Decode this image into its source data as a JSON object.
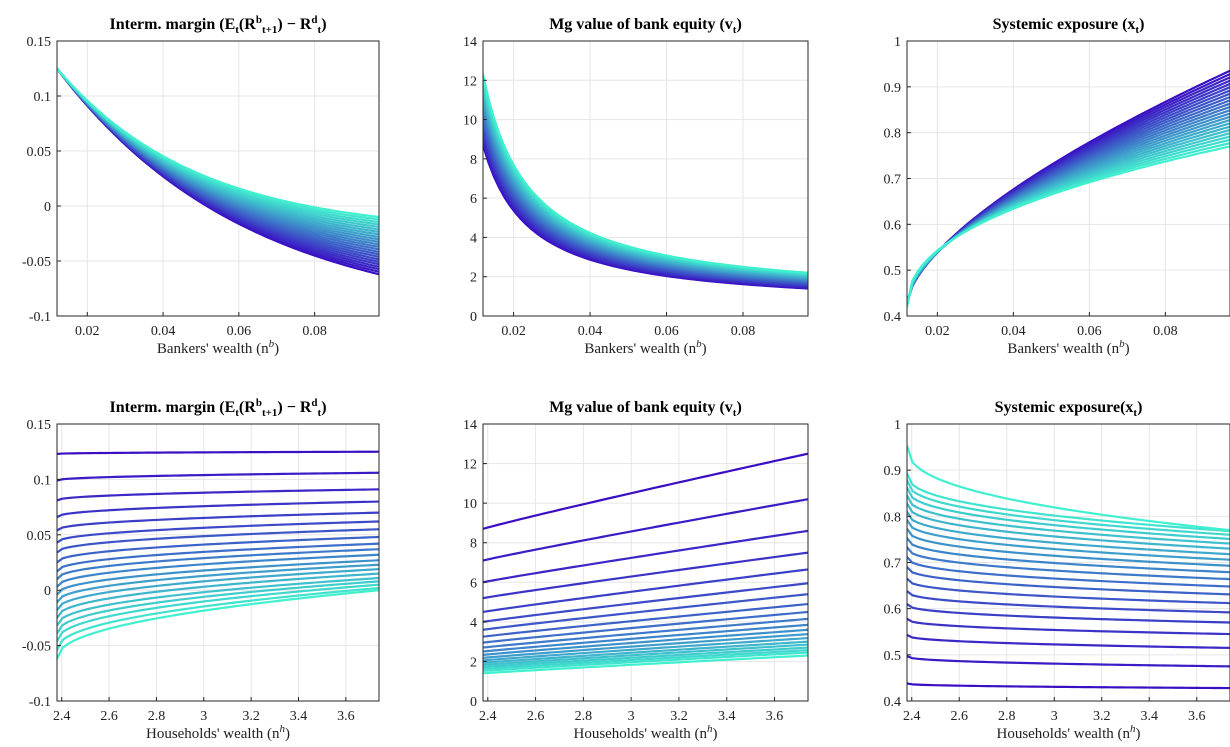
{
  "chart_data": [
    {
      "id": "p1",
      "type": "line",
      "title": "Interm. margin (E",
      "title_parts": [
        "Interm. margin (",
        "E",
        "t",
        "(R",
        "b",
        "t+1",
        ") − ",
        "R",
        "d",
        "t",
        ")"
      ],
      "xlabel": "Bankers' wealth (n",
      "xlabel_sup": "b",
      "xlabel_close": ")",
      "xlim": [
        0.012,
        0.097
      ],
      "ylim": [
        -0.1,
        0.15
      ],
      "xticks": [
        0.02,
        0.04,
        0.06,
        0.08
      ],
      "xtick_labels": [
        "0.02",
        "0.04",
        "0.06",
        "0.08"
      ],
      "yticks": [
        -0.1,
        -0.05,
        0,
        0.05,
        0.1,
        0.15
      ],
      "ytick_labels": [
        "-0.1",
        "-0.05",
        "0",
        "0.05",
        "0.1",
        "0.15"
      ],
      "n_series": 24,
      "family": "fan",
      "x_range": [
        0.012,
        0.097
      ],
      "start_value": 0.125,
      "end_values": [
        -0.062,
        -0.01
      ],
      "curvature": [
        1.7,
        2.3
      ]
    },
    {
      "id": "p2",
      "type": "line",
      "title": "Mg value of bank equity (",
      "title_parts": [
        "Mg value of bank equity (",
        "v",
        "t",
        ")"
      ],
      "xlabel": "Bankers' wealth (n",
      "xlabel_sup": "b",
      "xlabel_close": ")",
      "xlim": [
        0.012,
        0.097
      ],
      "ylim": [
        0,
        14
      ],
      "xticks": [
        0.02,
        0.04,
        0.06,
        0.08
      ],
      "xtick_labels": [
        "0.02",
        "0.04",
        "0.06",
        "0.08"
      ],
      "yticks": [
        0,
        2,
        4,
        6,
        8,
        10,
        12,
        14
      ],
      "ytick_labels": [
        "0",
        "2",
        "4",
        "6",
        "8",
        "10",
        "12",
        "14"
      ],
      "n_series": 24,
      "family": "decay",
      "x_range": [
        0.012,
        0.097
      ],
      "start_values": [
        8.7,
        12.3
      ],
      "end_values": [
        1.4,
        2.2
      ],
      "exponent": 1.0
    },
    {
      "id": "p3",
      "type": "line",
      "title": "Systemic exposure (",
      "title_parts": [
        "Systemic exposure (",
        "x",
        "t",
        ")"
      ],
      "xlabel": "Bankers' wealth (n",
      "xlabel_sup": "b",
      "xlabel_close": ")",
      "xlim": [
        0.012,
        0.097
      ],
      "ylim": [
        0.4,
        1.0
      ],
      "xticks": [
        0.02,
        0.04,
        0.06,
        0.08
      ],
      "xtick_labels": [
        "0.02",
        "0.04",
        "0.06",
        "0.08"
      ],
      "yticks": [
        0.4,
        0.5,
        0.6,
        0.7,
        0.8,
        0.9,
        1.0
      ],
      "ytick_labels": [
        "0.4",
        "0.5",
        "0.6",
        "0.7",
        "0.8",
        "0.9",
        "1"
      ],
      "n_series": 24,
      "family": "rise",
      "x_range": [
        0.012,
        0.097
      ],
      "start_values": [
        0.43,
        0.42
      ],
      "mid_values": [
        0.73,
        0.665
      ],
      "mid_x": 0.05,
      "end_values": [
        0.935,
        0.77
      ]
    },
    {
      "id": "p4",
      "type": "line",
      "title": "Interm. margin (E",
      "title_parts": [
        "Interm. margin (",
        "E",
        "t",
        "(R",
        "b",
        "t+1",
        ") − ",
        "R",
        "d",
        "t",
        ")"
      ],
      "xlabel": "Households' wealth (n",
      "xlabel_sup": "h",
      "xlabel_close": ")",
      "xlim": [
        2.38,
        3.74
      ],
      "ylim": [
        -0.1,
        0.15
      ],
      "xticks": [
        2.4,
        2.6,
        2.8,
        3.0,
        3.2,
        3.4,
        3.6
      ],
      "xtick_labels": [
        "2.4",
        "2.6",
        "2.8",
        "3",
        "3.2",
        "3.4",
        "3.6"
      ],
      "yticks": [
        -0.1,
        -0.05,
        0,
        0.05,
        0.1,
        0.15
      ],
      "ytick_labels": [
        "-0.1",
        "-0.05",
        "0",
        "0.05",
        "0.1",
        "0.15"
      ],
      "n_series": 20,
      "family": "levels",
      "x_range": [
        2.38,
        3.74
      ],
      "start_values": [
        0.123,
        0.099,
        0.081,
        0.066,
        0.054,
        0.043,
        0.034,
        0.025,
        0.017,
        0.01,
        0.003,
        -0.004,
        -0.011,
        -0.018,
        -0.025,
        -0.032,
        -0.039,
        -0.046,
        -0.054,
        -0.062
      ],
      "end_values": [
        0.125,
        0.106,
        0.091,
        0.08,
        0.07,
        0.062,
        0.055,
        0.048,
        0.042,
        0.037,
        0.032,
        0.027,
        0.023,
        0.019,
        0.015,
        0.011,
        0.008,
        0.005,
        0.002,
        0.0
      ],
      "exponent": 0.45
    },
    {
      "id": "p5",
      "type": "line",
      "title": "Mg value of bank equity (",
      "title_parts": [
        "Mg value of bank equity (",
        "v",
        "t",
        ")"
      ],
      "xlabel": "Households' wealth (n",
      "xlabel_sup": "h",
      "xlabel_close": ")",
      "xlim": [
        2.38,
        3.74
      ],
      "ylim": [
        0,
        14
      ],
      "xticks": [
        2.4,
        2.6,
        2.8,
        3.0,
        3.2,
        3.4,
        3.6
      ],
      "xtick_labels": [
        "2.4",
        "2.6",
        "2.8",
        "3",
        "3.2",
        "3.4",
        "3.6"
      ],
      "yticks": [
        0,
        2,
        4,
        6,
        8,
        10,
        12,
        14
      ],
      "ytick_labels": [
        "0",
        "2",
        "4",
        "6",
        "8",
        "10",
        "12",
        "14"
      ],
      "n_series": 20,
      "family": "levels",
      "x_range": [
        2.38,
        3.74
      ],
      "start_values": [
        8.7,
        7.1,
        6.0,
        5.2,
        4.5,
        4.0,
        3.6,
        3.25,
        2.95,
        2.7,
        2.5,
        2.33,
        2.18,
        2.05,
        1.93,
        1.82,
        1.72,
        1.62,
        1.52,
        1.4
      ],
      "end_values": [
        12.5,
        10.2,
        8.6,
        7.5,
        6.65,
        5.95,
        5.4,
        4.9,
        4.5,
        4.15,
        3.85,
        3.6,
        3.38,
        3.18,
        3.0,
        2.85,
        2.7,
        2.57,
        2.45,
        2.3
      ],
      "exponent": 0.95
    },
    {
      "id": "p6",
      "type": "line",
      "title": "Systemic exposure(",
      "title_parts": [
        "Systemic exposure(",
        "x",
        "t",
        ")"
      ],
      "xlabel": "Households' wealth (n",
      "xlabel_sup": "h",
      "xlabel_close": ")",
      "xlim": [
        2.38,
        3.74
      ],
      "ylim": [
        0.4,
        1.0
      ],
      "xticks": [
        2.4,
        2.6,
        2.8,
        3.0,
        3.2,
        3.4,
        3.6
      ],
      "xtick_labels": [
        "2.4",
        "2.6",
        "2.8",
        "3",
        "3.2",
        "3.4",
        "3.6"
      ],
      "yticks": [
        0.4,
        0.5,
        0.6,
        0.7,
        0.8,
        0.9,
        1.0
      ],
      "ytick_labels": [
        "0.4",
        "0.5",
        "0.6",
        "0.7",
        "0.8",
        "0.9",
        "1"
      ],
      "n_series": 20,
      "family": "levels",
      "x_range": [
        2.38,
        3.74
      ],
      "start_values": [
        0.438,
        0.497,
        0.543,
        0.578,
        0.61,
        0.638,
        0.665,
        0.69,
        0.712,
        0.733,
        0.753,
        0.773,
        0.792,
        0.81,
        0.828,
        0.845,
        0.862,
        0.878,
        0.893,
        0.953
      ],
      "end_values": [
        0.428,
        0.475,
        0.515,
        0.545,
        0.57,
        0.592,
        0.612,
        0.631,
        0.648,
        0.664,
        0.679,
        0.693,
        0.706,
        0.718,
        0.73,
        0.741,
        0.751,
        0.76,
        0.768,
        0.77
      ],
      "exponent": 0.4
    }
  ],
  "colors": {
    "series_start": "#3a0fc4",
    "series_end": "#40f0cf",
    "axes": "#262626",
    "grid": "#e6e6e6"
  }
}
